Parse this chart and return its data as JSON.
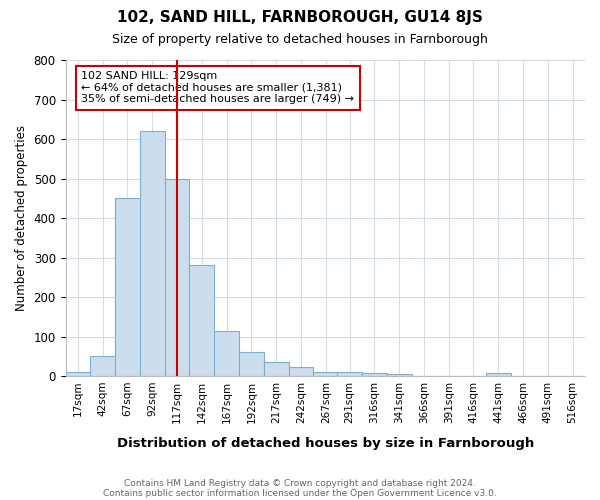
{
  "title": "102, SAND HILL, FARNBOROUGH, GU14 8JS",
  "subtitle": "Size of property relative to detached houses in Farnborough",
  "xlabel": "Distribution of detached houses by size in Farnborough",
  "ylabel": "Number of detached properties",
  "footnote1": "Contains HM Land Registry data © Crown copyright and database right 2024.",
  "footnote2": "Contains public sector information licensed under the Open Government Licence v3.0.",
  "bin_labels": [
    "17sqm",
    "42sqm",
    "67sqm",
    "92sqm",
    "117sqm",
    "142sqm",
    "167sqm",
    "192sqm",
    "217sqm",
    "242sqm",
    "267sqm",
    "291sqm",
    "316sqm",
    "341sqm",
    "366sqm",
    "391sqm",
    "416sqm",
    "441sqm",
    "466sqm",
    "491sqm",
    "516sqm"
  ],
  "bin_edges": [
    17,
    42,
    67,
    92,
    117,
    142,
    167,
    192,
    217,
    242,
    267,
    291,
    316,
    341,
    366,
    391,
    416,
    441,
    466,
    491,
    516
  ],
  "bin_width": 25,
  "bar_heights": [
    10,
    50,
    450,
    620,
    500,
    280,
    115,
    60,
    37,
    22,
    10,
    10,
    7,
    5,
    0,
    0,
    0,
    7,
    0,
    0,
    0
  ],
  "bar_color": "#ccdded",
  "bar_edge_color": "#7ab0d0",
  "vline_x": 129,
  "vline_color": "#cc0000",
  "ylim": [
    0,
    800
  ],
  "yticks": [
    0,
    100,
    200,
    300,
    400,
    500,
    600,
    700,
    800
  ],
  "annotation_text": "102 SAND HILL: 129sqm\n← 64% of detached houses are smaller (1,381)\n35% of semi-detached houses are larger (749) →",
  "annotation_box_color": "#cc0000",
  "grid_color": "#d4dde6",
  "background_color": "#ffffff"
}
